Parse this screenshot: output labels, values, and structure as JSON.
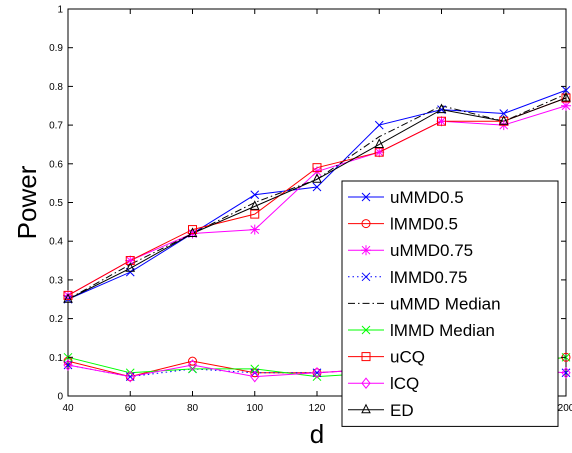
{
  "chart_data": {
    "type": "line",
    "xlabel": "d",
    "ylabel": "Power",
    "xlim": [
      40,
      200
    ],
    "ylim": [
      0,
      1
    ],
    "x": [
      40,
      60,
      80,
      100,
      120,
      140,
      160,
      180,
      200
    ],
    "x_ticks": [
      "40",
      "60",
      "80",
      "100",
      "120",
      "140",
      "160",
      "180",
      "200"
    ],
    "y_ticks": [
      "0",
      "0.1",
      "0.2",
      "0.3",
      "0.4",
      "0.5",
      "0.6",
      "0.7",
      "0.8",
      "0.9",
      "1"
    ],
    "grid": false,
    "legend_position": "right",
    "series": [
      {
        "name": "uMMD0.5",
        "color": "#0000ff",
        "marker": "x",
        "dash": "solid",
        "values": [
          0.25,
          0.32,
          0.42,
          0.52,
          0.54,
          0.7,
          0.74,
          0.73,
          0.79
        ]
      },
      {
        "name": "lMMD0.5",
        "color": "#ff0000",
        "marker": "o",
        "dash": "solid",
        "values": [
          0.09,
          0.05,
          0.09,
          0.06,
          0.06,
          0.07,
          0.07,
          0.08,
          0.1
        ]
      },
      {
        "name": "uMMD0.75",
        "color": "#ff00ff",
        "marker": "*",
        "dash": "solid",
        "values": [
          0.26,
          0.35,
          0.42,
          0.43,
          0.58,
          0.63,
          0.71,
          0.7,
          0.75
        ]
      },
      {
        "name": "lMMD0.75",
        "color": "#0000ff",
        "marker": "x",
        "dash": "dotted",
        "values": [
          0.08,
          0.05,
          0.07,
          0.06,
          0.06,
          0.07,
          0.07,
          0.07,
          0.06
        ]
      },
      {
        "name": "uMMD  Median",
        "color": "#000000",
        "marker": "none",
        "dash": "dashdot",
        "values": [
          0.25,
          0.34,
          0.42,
          0.5,
          0.56,
          0.67,
          0.75,
          0.71,
          0.78
        ]
      },
      {
        "name": "lMMD  Median",
        "color": "#00ff00",
        "marker": "x",
        "dash": "solid",
        "values": [
          0.1,
          0.06,
          0.07,
          0.07,
          0.05,
          0.06,
          0.07,
          0.08,
          0.1
        ]
      },
      {
        "name": "uCQ",
        "color": "#ff0000",
        "marker": "s",
        "dash": "solid",
        "values": [
          0.26,
          0.35,
          0.43,
          0.47,
          0.59,
          0.63,
          0.71,
          0.71,
          0.77
        ]
      },
      {
        "name": "lCQ",
        "color": "#ff00ff",
        "marker": "d",
        "dash": "solid",
        "values": [
          0.08,
          0.05,
          0.08,
          0.05,
          0.06,
          0.07,
          0.07,
          0.07,
          0.06
        ]
      },
      {
        "name": "ED",
        "color": "#000000",
        "marker": "^",
        "dash": "solid",
        "values": [
          0.25,
          0.33,
          0.42,
          0.49,
          0.56,
          0.65,
          0.74,
          0.71,
          0.77
        ]
      }
    ]
  }
}
